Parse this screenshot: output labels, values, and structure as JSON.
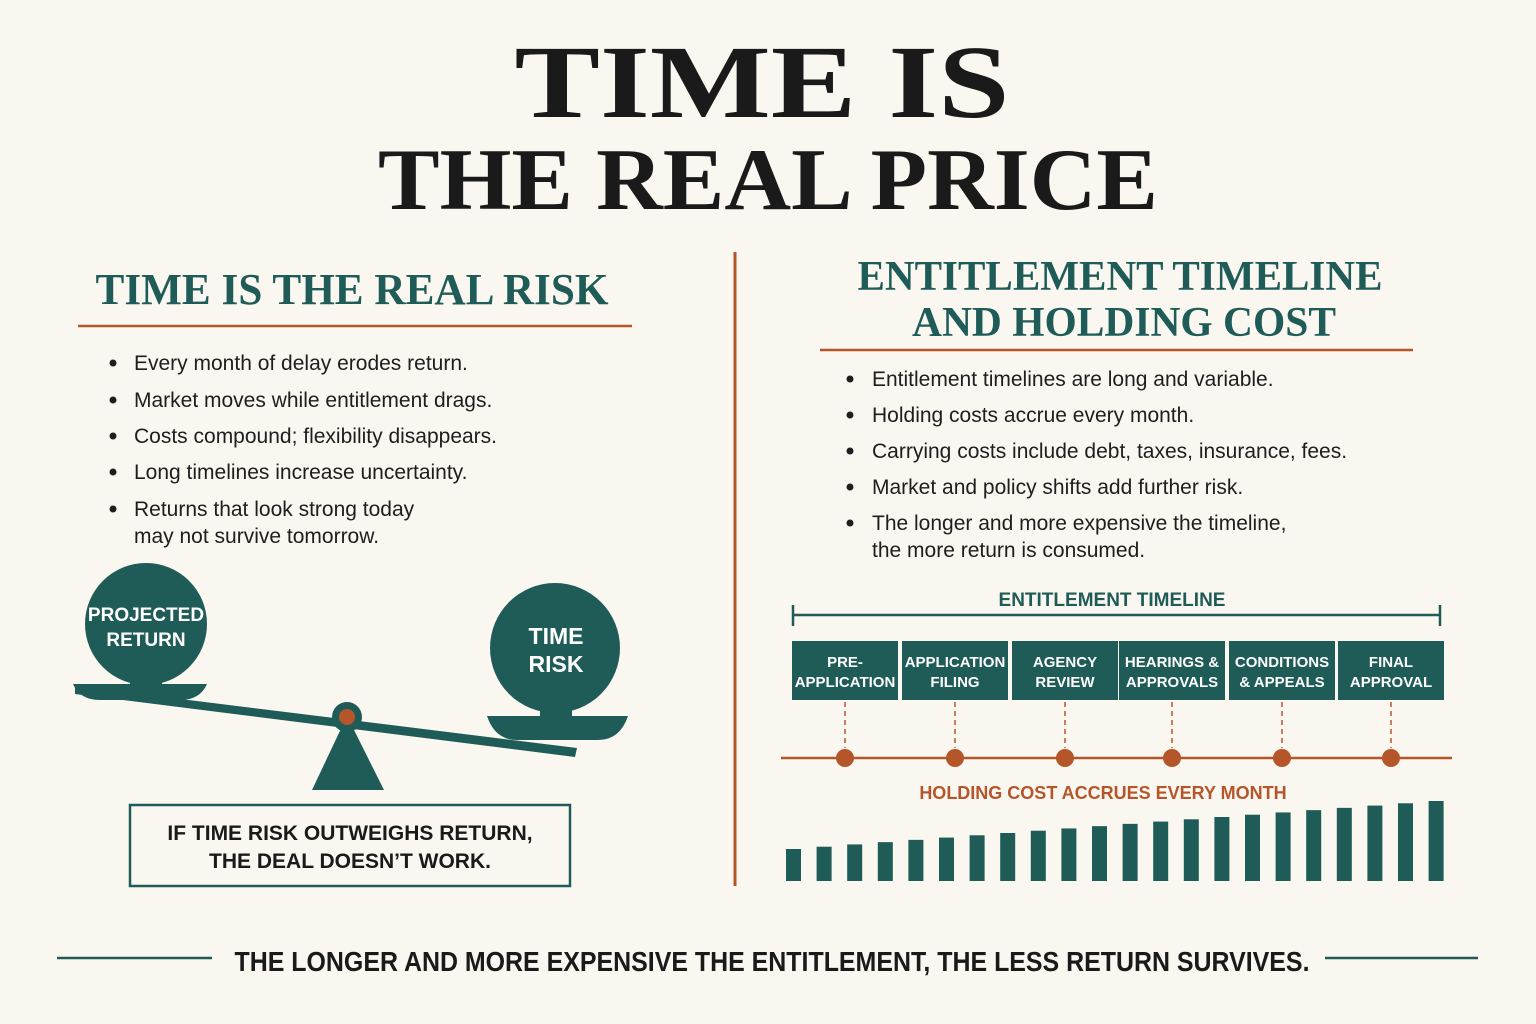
{
  "title": [
    "TIME IS",
    "THE REAL PRICE"
  ],
  "left": {
    "heading": "TIME IS THE REAL RISK",
    "bullets": [
      [
        "Every month of delay erodes return."
      ],
      [
        "Market moves while entitlement drags."
      ],
      [
        "Costs compound; flexibility disappears."
      ],
      [
        "Long timelines increase uncertainty."
      ],
      [
        "Returns that look strong today",
        "may not survive tomorrow."
      ]
    ],
    "scale": {
      "left_weight": [
        "PROJECTED",
        "RETURN"
      ],
      "right_weight": [
        "TIME",
        "RISK"
      ]
    },
    "callout": [
      "IF TIME RISK OUTWEIGHS RETURN,",
      "THE DEAL DOESN’T WORK."
    ]
  },
  "right": {
    "heading": [
      "ENTITLEMENT TIMELINE",
      "AND HOLDING COST"
    ],
    "bullets": [
      [
        "Entitlement timelines are long and variable."
      ],
      [
        "Holding costs accrue every month."
      ],
      [
        "Carrying costs include debt, taxes, insurance, fees."
      ],
      [
        "Market and policy shifts add further risk."
      ],
      [
        "The longer and more expensive the timeline,",
        "the more return is consumed."
      ]
    ],
    "timeline_label": "ENTITLEMENT TIMELINE",
    "stages": [
      [
        "PRE-",
        "APPLICATION"
      ],
      [
        "APPLICATION",
        "FILING"
      ],
      [
        "AGENCY",
        "REVIEW"
      ],
      [
        "HEARINGS &",
        "APPROVALS"
      ],
      [
        "CONDITIONS",
        "& APPEALS"
      ],
      [
        "FINAL",
        "APPROVAL"
      ]
    ],
    "holding_label": "HOLDING COST ACCRUES EVERY MONTH"
  },
  "footer": "THE LONGER AND MORE EXPENSIVE THE ENTITLEMENT, THE LESS RETURN SURVIVES."
}
